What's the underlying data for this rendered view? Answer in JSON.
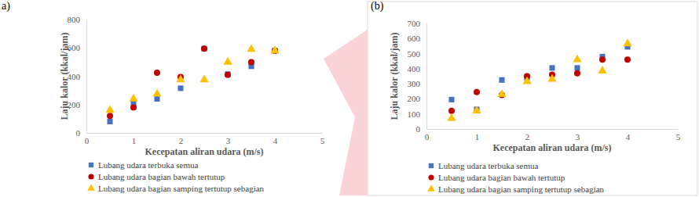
{
  "chart_data": [
    {
      "type": "scatter",
      "title": "a)",
      "x_label": "Kecepatan aliran udara (m/s)",
      "y_label": "Laju kalor (kkal/jam)",
      "x": [
        0.5,
        1,
        1.5,
        2,
        2.5,
        3,
        3.5,
        4
      ],
      "xlim": [
        0,
        5
      ],
      "xticks": [
        0,
        1,
        2,
        3,
        4,
        5
      ],
      "ylim": [
        0,
        800
      ],
      "yticks": [
        0,
        200,
        400,
        600,
        800
      ],
      "grid": false,
      "legend": "bottom",
      "series": [
        {
          "name": "Lubang udara terbuka semua",
          "color": "#4472c4",
          "marker": "square",
          "values": [
            80,
            210,
            240,
            315,
            595,
            415,
            470,
            580
          ]
        },
        {
          "name": "Lubang udara bagian bawah tertutup",
          "color": "#c00000",
          "marker": "circle",
          "values": [
            120,
            180,
            425,
            395,
            595,
            410,
            500,
            580
          ]
        },
        {
          "name": "Lubang udara bagian samping tertutup sebagian",
          "color": "#ffc000",
          "marker": "triangle",
          "values": [
            160,
            240,
            275,
            375,
            375,
            500,
            590,
            580
          ]
        }
      ]
    },
    {
      "type": "scatter",
      "title": "(b)",
      "x_label": "Kecepatan aliran udara (m/s)",
      "y_label": "Laju kalor (kkal/jam)",
      "x": [
        0.5,
        1,
        1.5,
        2,
        2.5,
        3,
        3.5,
        4
      ],
      "xlim": [
        0,
        5
      ],
      "xticks": [
        0,
        1,
        2,
        3,
        4,
        5
      ],
      "ylim": [
        0,
        700
      ],
      "yticks": [
        0,
        100,
        200,
        300,
        400,
        500,
        600,
        700
      ],
      "grid": false,
      "legend": "bottom",
      "series": [
        {
          "name": "Lubang udara terbuka semua",
          "color": "#4472c4",
          "marker": "square",
          "values": [
            195,
            130,
            325,
            340,
            405,
            405,
            480,
            545
          ]
        },
        {
          "name": "Lubang udara bagian bawah tertutup",
          "color": "#c00000",
          "marker": "circle",
          "values": [
            120,
            245,
            225,
            350,
            360,
            370,
            460,
            460
          ]
        },
        {
          "name": "Lubang udara bagian samping tertutup sebagian",
          "color": "#ffc000",
          "marker": "triangle",
          "values": [
            70,
            120,
            230,
            315,
            330,
            460,
            385,
            565
          ]
        }
      ]
    }
  ]
}
